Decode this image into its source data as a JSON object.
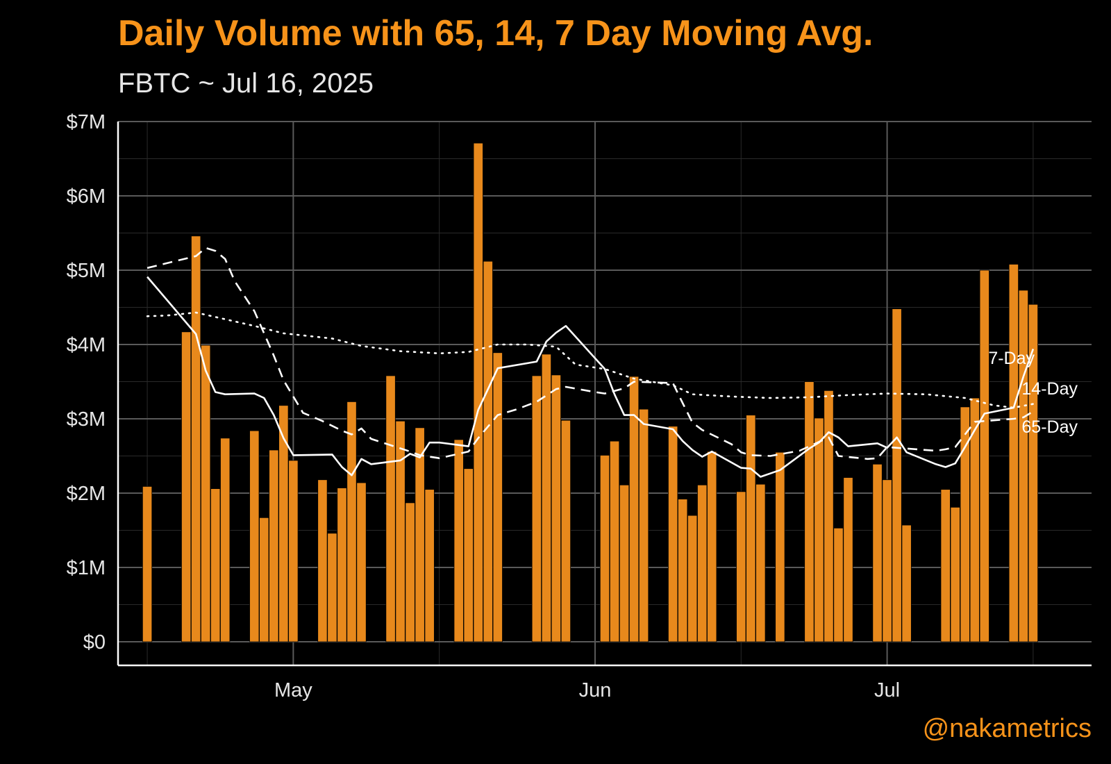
{
  "title": "Daily Volume with 65, 14, 7 Day Moving Avg.",
  "subtitle": "FBTC ~ Jul 16, 2025",
  "credit": "@nakametrics",
  "colors": {
    "background": "#000000",
    "bars": "#e8891c",
    "bar_outline": "#000000",
    "title": "#f7931a",
    "lines": "#ffffff",
    "major_grid": "#5a5a5a",
    "minor_grid": "#2a2a2a",
    "axis": "#ffffff",
    "text": "#e6e6e6"
  },
  "chart_data": {
    "type": "bar",
    "title": "Daily Volume with 65, 14, 7 Day Moving Avg.",
    "subtitle": "FBTC ~ Jul 16, 2025",
    "x_start": "2025-04-16",
    "x_end": "2025-07-16",
    "xlim": [
      "2025-04-13",
      "2025-07-22"
    ],
    "ylim": [
      0,
      7000000
    ],
    "grid": true,
    "y_ticks": [
      {
        "value": 0,
        "label": "$0"
      },
      {
        "value": 1000000,
        "label": "$1M"
      },
      {
        "value": 2000000,
        "label": "$2M"
      },
      {
        "value": 3000000,
        "label": "$3M"
      },
      {
        "value": 4000000,
        "label": "$4M"
      },
      {
        "value": 5000000,
        "label": "$5M"
      },
      {
        "value": 6000000,
        "label": "$6M"
      },
      {
        "value": 7000000,
        "label": "$7M"
      }
    ],
    "x_ticks": [
      {
        "value": "2025-05-01",
        "label": "May"
      },
      {
        "value": "2025-06-01",
        "label": "Jun"
      },
      {
        "value": "2025-07-01",
        "label": "Jul"
      }
    ],
    "x": [
      "2025-04-16",
      "2025-04-17",
      "2025-04-18",
      "2025-04-19",
      "2025-04-20",
      "2025-04-21",
      "2025-04-22",
      "2025-04-23",
      "2025-04-24",
      "2025-04-25",
      "2025-04-26",
      "2025-04-27",
      "2025-04-28",
      "2025-04-29",
      "2025-04-30",
      "2025-05-01",
      "2025-05-02",
      "2025-05-03",
      "2025-05-04",
      "2025-05-05",
      "2025-05-06",
      "2025-05-07",
      "2025-05-08",
      "2025-05-09",
      "2025-05-10",
      "2025-05-11",
      "2025-05-12",
      "2025-05-13",
      "2025-05-14",
      "2025-05-15",
      "2025-05-16",
      "2025-05-17",
      "2025-05-18",
      "2025-05-19",
      "2025-05-20",
      "2025-05-21",
      "2025-05-22",
      "2025-05-23",
      "2025-05-24",
      "2025-05-25",
      "2025-05-26",
      "2025-05-27",
      "2025-05-28",
      "2025-05-29",
      "2025-05-30",
      "2025-05-31",
      "2025-06-01",
      "2025-06-02",
      "2025-06-03",
      "2025-06-04",
      "2025-06-05",
      "2025-06-06",
      "2025-06-07",
      "2025-06-08",
      "2025-06-09",
      "2025-06-10",
      "2025-06-11",
      "2025-06-12",
      "2025-06-13",
      "2025-06-14",
      "2025-06-15",
      "2025-06-16",
      "2025-06-17",
      "2025-06-18",
      "2025-06-19",
      "2025-06-20",
      "2025-06-21",
      "2025-06-22",
      "2025-06-23",
      "2025-06-24",
      "2025-06-25",
      "2025-06-26",
      "2025-06-27",
      "2025-06-28",
      "2025-06-29",
      "2025-06-30",
      "2025-07-01",
      "2025-07-02",
      "2025-07-03",
      "2025-07-04",
      "2025-07-05",
      "2025-07-06",
      "2025-07-07",
      "2025-07-08",
      "2025-07-09",
      "2025-07-10",
      "2025-07-11",
      "2025-07-12",
      "2025-07-13",
      "2025-07-14",
      "2025-07-15",
      "2025-07-16"
    ],
    "values": [
      2090000,
      null,
      null,
      null,
      4170000,
      5460000,
      3990000,
      2060000,
      2740000,
      null,
      null,
      2840000,
      1670000,
      2580000,
      3180000,
      2440000,
      null,
      null,
      2180000,
      1460000,
      2070000,
      3230000,
      2140000,
      null,
      null,
      3580000,
      2970000,
      1870000,
      2880000,
      2050000,
      null,
      null,
      2720000,
      2330000,
      6710000,
      5120000,
      3890000,
      null,
      null,
      null,
      3580000,
      3870000,
      3590000,
      2980000,
      null,
      null,
      null,
      2510000,
      2700000,
      2110000,
      3570000,
      3130000,
      null,
      null,
      2900000,
      1920000,
      1700000,
      2110000,
      2560000,
      null,
      null,
      2020000,
      3050000,
      2120000,
      null,
      2550000,
      null,
      null,
      3500000,
      3010000,
      3380000,
      1530000,
      2210000,
      null,
      null,
      2390000,
      2180000,
      4480000,
      1570000,
      null,
      null,
      null,
      2050000,
      1810000,
      3160000,
      3280000,
      5000000,
      null,
      null,
      5080000,
      4730000,
      4540000
    ],
    "series": [
      {
        "name": "7-Day",
        "style": "solid",
        "points": [
          [
            "2025-04-16",
            4910000
          ],
          [
            "2025-04-21",
            4140000
          ],
          [
            "2025-04-22",
            3650000
          ],
          [
            "2025-04-23",
            3360000
          ],
          [
            "2025-04-24",
            3330000
          ],
          [
            "2025-04-27",
            3340000
          ],
          [
            "2025-04-28",
            3280000
          ],
          [
            "2025-04-29",
            3050000
          ],
          [
            "2025-04-30",
            2740000
          ],
          [
            "2025-05-01",
            2510000
          ],
          [
            "2025-05-05",
            2520000
          ],
          [
            "2025-05-06",
            2350000
          ],
          [
            "2025-05-07",
            2240000
          ],
          [
            "2025-05-08",
            2460000
          ],
          [
            "2025-05-09",
            2390000
          ],
          [
            "2025-05-12",
            2440000
          ],
          [
            "2025-05-13",
            2530000
          ],
          [
            "2025-05-14",
            2480000
          ],
          [
            "2025-05-15",
            2680000
          ],
          [
            "2025-05-16",
            2680000
          ],
          [
            "2025-05-19",
            2630000
          ],
          [
            "2025-05-20",
            3120000
          ],
          [
            "2025-05-21",
            3400000
          ],
          [
            "2025-05-22",
            3680000
          ],
          [
            "2025-05-26",
            3770000
          ],
          [
            "2025-05-27",
            4040000
          ],
          [
            "2025-05-28",
            4160000
          ],
          [
            "2025-05-29",
            4250000
          ],
          [
            "2025-06-02",
            3670000
          ],
          [
            "2025-06-03",
            3330000
          ],
          [
            "2025-06-04",
            3050000
          ],
          [
            "2025-06-05",
            3050000
          ],
          [
            "2025-06-06",
            2930000
          ],
          [
            "2025-06-09",
            2860000
          ],
          [
            "2025-06-10",
            2700000
          ],
          [
            "2025-06-11",
            2580000
          ],
          [
            "2025-06-12",
            2490000
          ],
          [
            "2025-06-13",
            2560000
          ],
          [
            "2025-06-16",
            2340000
          ],
          [
            "2025-06-17",
            2330000
          ],
          [
            "2025-06-18",
            2220000
          ],
          [
            "2025-06-20",
            2310000
          ],
          [
            "2025-06-23",
            2600000
          ],
          [
            "2025-06-24",
            2680000
          ],
          [
            "2025-06-25",
            2820000
          ],
          [
            "2025-06-26",
            2750000
          ],
          [
            "2025-06-27",
            2630000
          ],
          [
            "2025-06-30",
            2670000
          ],
          [
            "2025-07-01",
            2610000
          ],
          [
            "2025-07-02",
            2750000
          ],
          [
            "2025-07-03",
            2550000
          ],
          [
            "2025-07-06",
            2390000
          ],
          [
            "2025-07-07",
            2350000
          ],
          [
            "2025-07-08",
            2400000
          ],
          [
            "2025-07-09",
            2620000
          ],
          [
            "2025-07-10",
            2850000
          ],
          [
            "2025-07-11",
            3070000
          ],
          [
            "2025-07-14",
            3150000
          ],
          [
            "2025-07-15",
            3570000
          ],
          [
            "2025-07-16",
            3940000
          ]
        ]
      },
      {
        "name": "14-Day",
        "style": "dashed",
        "points": [
          [
            "2025-04-16",
            5030000
          ],
          [
            "2025-04-21",
            5190000
          ],
          [
            "2025-04-22",
            5300000
          ],
          [
            "2025-04-23",
            5260000
          ],
          [
            "2025-04-24",
            5150000
          ],
          [
            "2025-04-25",
            4850000
          ],
          [
            "2025-04-27",
            4450000
          ],
          [
            "2025-04-28",
            4150000
          ],
          [
            "2025-04-29",
            3850000
          ],
          [
            "2025-04-30",
            3520000
          ],
          [
            "2025-05-01",
            3300000
          ],
          [
            "2025-05-02",
            3080000
          ],
          [
            "2025-05-04",
            2970000
          ],
          [
            "2025-05-06",
            2840000
          ],
          [
            "2025-05-07",
            2790000
          ],
          [
            "2025-05-08",
            2870000
          ],
          [
            "2025-05-09",
            2730000
          ],
          [
            "2025-05-13",
            2560000
          ],
          [
            "2025-05-14",
            2510000
          ],
          [
            "2025-05-16",
            2470000
          ],
          [
            "2025-05-19",
            2560000
          ],
          [
            "2025-05-20",
            2740000
          ],
          [
            "2025-05-22",
            3050000
          ],
          [
            "2025-05-24",
            3130000
          ],
          [
            "2025-05-26",
            3230000
          ],
          [
            "2025-05-28",
            3400000
          ],
          [
            "2025-05-29",
            3430000
          ],
          [
            "2025-06-01",
            3360000
          ],
          [
            "2025-06-02",
            3340000
          ],
          [
            "2025-06-04",
            3410000
          ],
          [
            "2025-06-05",
            3500000
          ],
          [
            "2025-06-09",
            3480000
          ],
          [
            "2025-06-10",
            3210000
          ],
          [
            "2025-06-11",
            2950000
          ],
          [
            "2025-06-12",
            2850000
          ],
          [
            "2025-06-15",
            2660000
          ],
          [
            "2025-06-16",
            2550000
          ],
          [
            "2025-06-17",
            2510000
          ],
          [
            "2025-06-19",
            2500000
          ],
          [
            "2025-06-22",
            2570000
          ],
          [
            "2025-06-25",
            2750000
          ],
          [
            "2025-06-26",
            2500000
          ],
          [
            "2025-06-29",
            2460000
          ],
          [
            "2025-06-30",
            2470000
          ],
          [
            "2025-07-01",
            2620000
          ],
          [
            "2025-07-03",
            2600000
          ],
          [
            "2025-07-06",
            2570000
          ],
          [
            "2025-07-07",
            2590000
          ],
          [
            "2025-07-08",
            2620000
          ],
          [
            "2025-07-10",
            2960000
          ],
          [
            "2025-07-14",
            3000000
          ],
          [
            "2025-07-15",
            3020000
          ],
          [
            "2025-07-16",
            3100000
          ]
        ]
      },
      {
        "name": "65-Day",
        "style": "dotted",
        "points": [
          [
            "2025-04-16",
            4380000
          ],
          [
            "2025-04-18",
            4390000
          ],
          [
            "2025-04-21",
            4430000
          ],
          [
            "2025-04-24",
            4340000
          ],
          [
            "2025-04-27",
            4250000
          ],
          [
            "2025-04-30",
            4150000
          ],
          [
            "2025-05-05",
            4080000
          ],
          [
            "2025-05-08",
            3980000
          ],
          [
            "2025-05-12",
            3910000
          ],
          [
            "2025-05-16",
            3880000
          ],
          [
            "2025-05-19",
            3900000
          ],
          [
            "2025-05-22",
            4000000
          ],
          [
            "2025-05-25",
            4000000
          ],
          [
            "2025-05-28",
            3970000
          ],
          [
            "2025-05-30",
            3730000
          ],
          [
            "2025-06-02",
            3670000
          ],
          [
            "2025-06-05",
            3540000
          ],
          [
            "2025-06-09",
            3450000
          ],
          [
            "2025-06-11",
            3330000
          ],
          [
            "2025-06-15",
            3300000
          ],
          [
            "2025-06-19",
            3280000
          ],
          [
            "2025-06-23",
            3290000
          ],
          [
            "2025-06-27",
            3320000
          ],
          [
            "2025-07-01",
            3340000
          ],
          [
            "2025-07-05",
            3330000
          ],
          [
            "2025-07-09",
            3280000
          ],
          [
            "2025-07-12",
            3180000
          ],
          [
            "2025-07-14",
            3150000
          ],
          [
            "2025-07-16",
            3200000
          ]
        ]
      }
    ],
    "series_labels": [
      "7-Day",
      "14-Day",
      "65-Day"
    ],
    "xlabel": "",
    "ylabel": ""
  }
}
